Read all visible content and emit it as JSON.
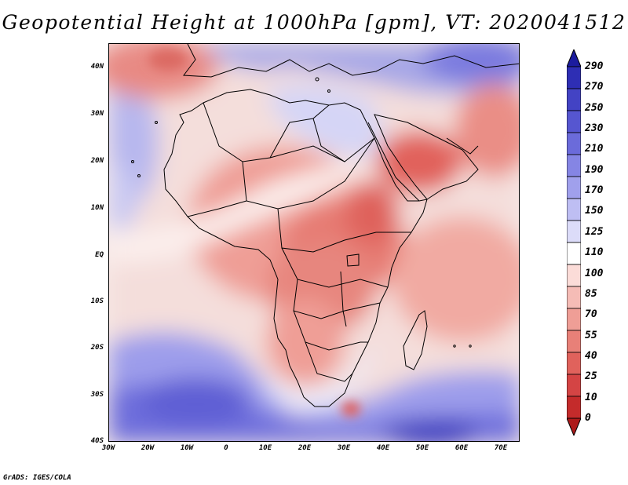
{
  "title": "Geopotential Height at 1000hPa [gpm], VT: 2020041512",
  "credit": "GrADS: IGES/COLA",
  "map": {
    "variable": "Geopotential Height",
    "level": "1000hPa",
    "units": "gpm",
    "valid_time": "2020041512",
    "lat_labels": [
      "40N",
      "30N",
      "20N",
      "10N",
      "EQ",
      "10S",
      "20S",
      "30S",
      "40S"
    ],
    "lon_labels": [
      "30W",
      "20W",
      "10W",
      "0",
      "10E",
      "20E",
      "30E",
      "40E",
      "50E",
      "60E",
      "70E"
    ]
  },
  "colorbar": {
    "levels": [
      "290",
      "270",
      "250",
      "230",
      "210",
      "190",
      "170",
      "150",
      "125",
      "110",
      "100",
      "85",
      "70",
      "55",
      "40",
      "25",
      "10",
      "0"
    ],
    "colors": [
      "#1c1c9e",
      "#2e2eb4",
      "#4343c4",
      "#5656d0",
      "#6b6bda",
      "#8585e4",
      "#a0a0ec",
      "#bebef3",
      "#dcdcf9",
      "#ffffff",
      "#fbdcd8",
      "#f5bcb6",
      "#ef9e96",
      "#e88078",
      "#e0625c",
      "#d44444",
      "#c42b2b",
      "#ad1a1a"
    ]
  },
  "colors": {
    "frame": "#000000",
    "coast": "#000000",
    "background": "#ffffff"
  }
}
